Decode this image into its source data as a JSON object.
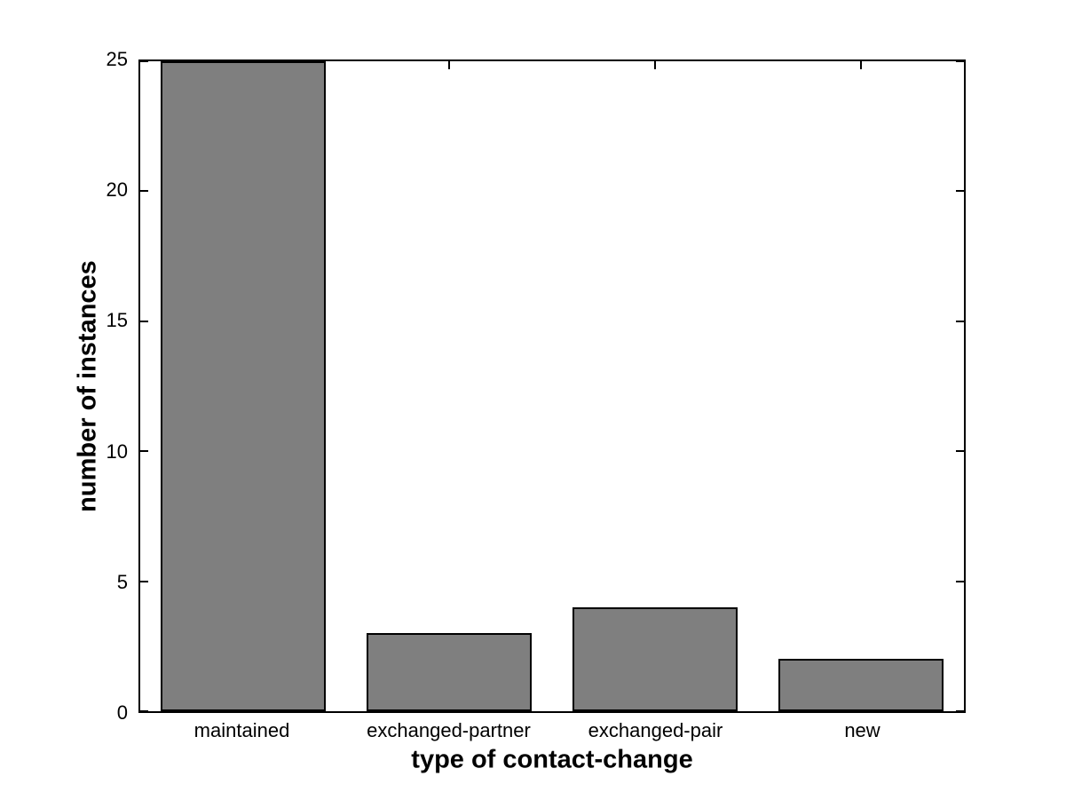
{
  "chart_data": {
    "type": "bar",
    "categories": [
      "maintained",
      "exchanged-partner",
      "exchanged-pair",
      "new"
    ],
    "values": [
      25,
      3,
      4,
      2
    ],
    "xlabel": "type of contact-change",
    "ylabel": "number of instances",
    "yticks": [
      0,
      5,
      10,
      15,
      20,
      25
    ],
    "ylim": [
      0,
      25
    ],
    "bar_width_fraction": 0.8,
    "bar_color": "#7f7f7f",
    "bar_edge_color": "#000000",
    "axis_color": "#000000",
    "background_color": "#ffffff",
    "grid": false,
    "legend": false
  }
}
